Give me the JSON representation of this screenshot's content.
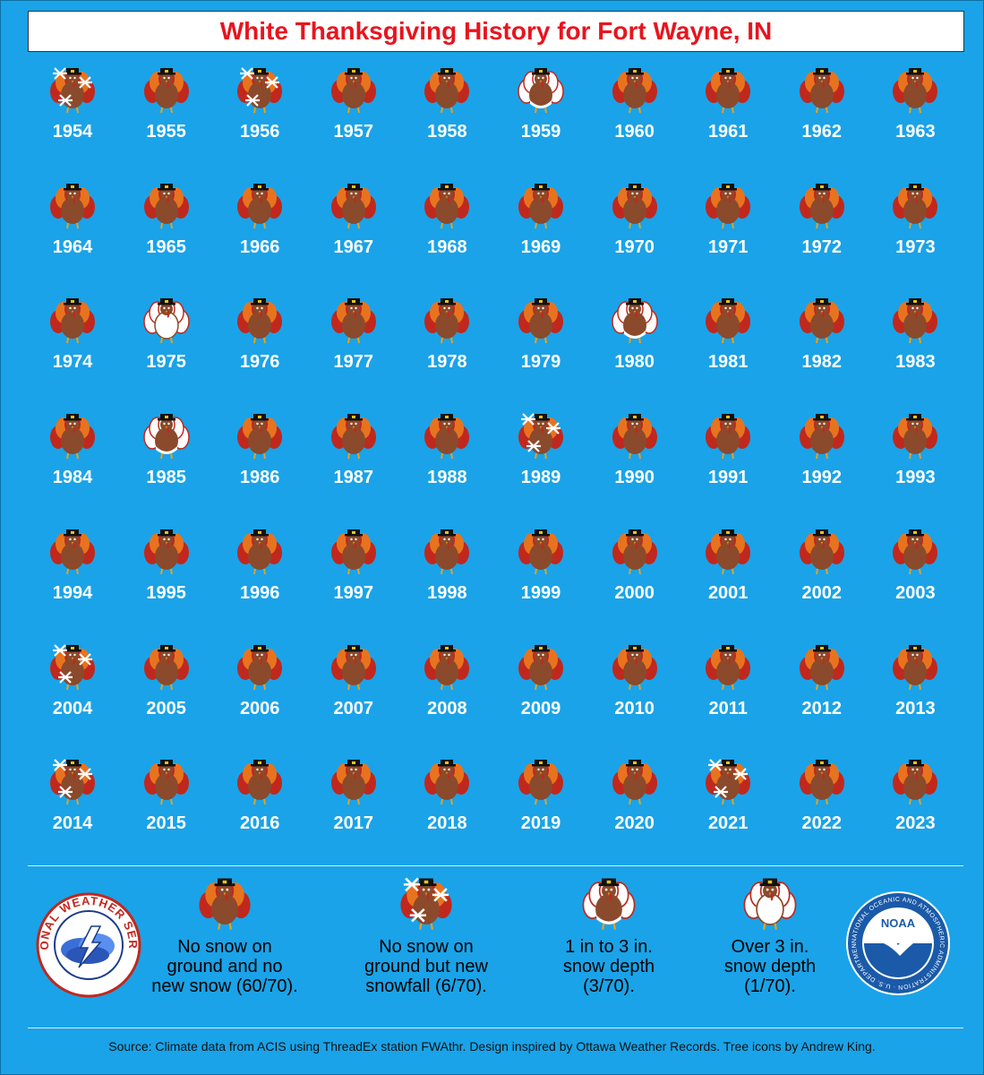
{
  "title": "White Thanksgiving History for Fort Wayne, IN",
  "chart_data": {
    "type": "table",
    "title": "White Thanksgiving History for Fort Wayne, IN",
    "categories_legend": {
      "none": "No snow on ground and no new snow (60/70).",
      "snowfall": "No snow on ground but new snowfall (6/70).",
      "depth_1_3": "1 in to 3 in. snow depth (3/70).",
      "depth_over_3": "Over 3 in. snow depth (1/70)."
    },
    "years": [
      {
        "year": "1954",
        "cat": "snowfall"
      },
      {
        "year": "1955",
        "cat": "none"
      },
      {
        "year": "1956",
        "cat": "snowfall"
      },
      {
        "year": "1957",
        "cat": "none"
      },
      {
        "year": "1958",
        "cat": "none"
      },
      {
        "year": "1959",
        "cat": "depth_1_3"
      },
      {
        "year": "1960",
        "cat": "none"
      },
      {
        "year": "1961",
        "cat": "none"
      },
      {
        "year": "1962",
        "cat": "none"
      },
      {
        "year": "1963",
        "cat": "none"
      },
      {
        "year": "1964",
        "cat": "none"
      },
      {
        "year": "1965",
        "cat": "none"
      },
      {
        "year": "1966",
        "cat": "none"
      },
      {
        "year": "1967",
        "cat": "none"
      },
      {
        "year": "1968",
        "cat": "none"
      },
      {
        "year": "1969",
        "cat": "none"
      },
      {
        "year": "1970",
        "cat": "none"
      },
      {
        "year": "1971",
        "cat": "none"
      },
      {
        "year": "1972",
        "cat": "none"
      },
      {
        "year": "1973",
        "cat": "none"
      },
      {
        "year": "1974",
        "cat": "none"
      },
      {
        "year": "1975",
        "cat": "depth_over_3"
      },
      {
        "year": "1976",
        "cat": "none"
      },
      {
        "year": "1977",
        "cat": "none"
      },
      {
        "year": "1978",
        "cat": "none"
      },
      {
        "year": "1979",
        "cat": "none"
      },
      {
        "year": "1980",
        "cat": "depth_1_3"
      },
      {
        "year": "1981",
        "cat": "none"
      },
      {
        "year": "1982",
        "cat": "none"
      },
      {
        "year": "1983",
        "cat": "none"
      },
      {
        "year": "1984",
        "cat": "none"
      },
      {
        "year": "1985",
        "cat": "depth_1_3"
      },
      {
        "year": "1986",
        "cat": "none"
      },
      {
        "year": "1987",
        "cat": "none"
      },
      {
        "year": "1988",
        "cat": "none"
      },
      {
        "year": "1989",
        "cat": "snowfall"
      },
      {
        "year": "1990",
        "cat": "none"
      },
      {
        "year": "1991",
        "cat": "none"
      },
      {
        "year": "1992",
        "cat": "none"
      },
      {
        "year": "1993",
        "cat": "none"
      },
      {
        "year": "1994",
        "cat": "none"
      },
      {
        "year": "1995",
        "cat": "none"
      },
      {
        "year": "1996",
        "cat": "none"
      },
      {
        "year": "1997",
        "cat": "none"
      },
      {
        "year": "1998",
        "cat": "none"
      },
      {
        "year": "1999",
        "cat": "none"
      },
      {
        "year": "2000",
        "cat": "none"
      },
      {
        "year": "2001",
        "cat": "none"
      },
      {
        "year": "2002",
        "cat": "none"
      },
      {
        "year": "2003",
        "cat": "none"
      },
      {
        "year": "2004",
        "cat": "snowfall"
      },
      {
        "year": "2005",
        "cat": "none"
      },
      {
        "year": "2006",
        "cat": "none"
      },
      {
        "year": "2007",
        "cat": "none"
      },
      {
        "year": "2008",
        "cat": "none"
      },
      {
        "year": "2009",
        "cat": "none"
      },
      {
        "year": "2010",
        "cat": "none"
      },
      {
        "year": "2011",
        "cat": "none"
      },
      {
        "year": "2012",
        "cat": "none"
      },
      {
        "year": "2013",
        "cat": "none"
      },
      {
        "year": "2014",
        "cat": "snowfall"
      },
      {
        "year": "2015",
        "cat": "none"
      },
      {
        "year": "2016",
        "cat": "none"
      },
      {
        "year": "2017",
        "cat": "none"
      },
      {
        "year": "2018",
        "cat": "none"
      },
      {
        "year": "2019",
        "cat": "none"
      },
      {
        "year": "2020",
        "cat": "none"
      },
      {
        "year": "2021",
        "cat": "snowfall"
      },
      {
        "year": "2022",
        "cat": "none"
      },
      {
        "year": "2023",
        "cat": "none"
      }
    ]
  },
  "legend": [
    {
      "cat": "none",
      "line1": "No snow on",
      "line2": "ground and no",
      "line3": "new snow (60/70)."
    },
    {
      "cat": "snowfall",
      "line1": "No snow on",
      "line2": "ground but new",
      "line3": "snowfall (6/70)."
    },
    {
      "cat": "depth_1_3",
      "line1": "1 in to 3 in.",
      "line2": "snow depth",
      "line3": "(3/70)."
    },
    {
      "cat": "depth_over_3",
      "line1": "Over 3 in.",
      "line2": "snow depth",
      "line3": "(1/70)."
    }
  ],
  "logos": {
    "nws": "NATIONAL WEATHER SERVICE",
    "noaa_center": "NOAA",
    "noaa_ring": "NATIONAL OCEANIC AND ATMOSPHERIC ADMINISTRATION · U.S. DEPARTMENT OF COMMERCE"
  },
  "source": "Source: Climate data from ACIS using ThreadEx station FWAthr. Design inspired by Ottawa Weather Records. Tree icons by Andrew King.",
  "colors": {
    "background": "#1aa3e8",
    "title": "#e8141e",
    "turkey_body": "#8b4a2b",
    "feather_red": "#c0281e",
    "feather_orange": "#e8731e"
  }
}
